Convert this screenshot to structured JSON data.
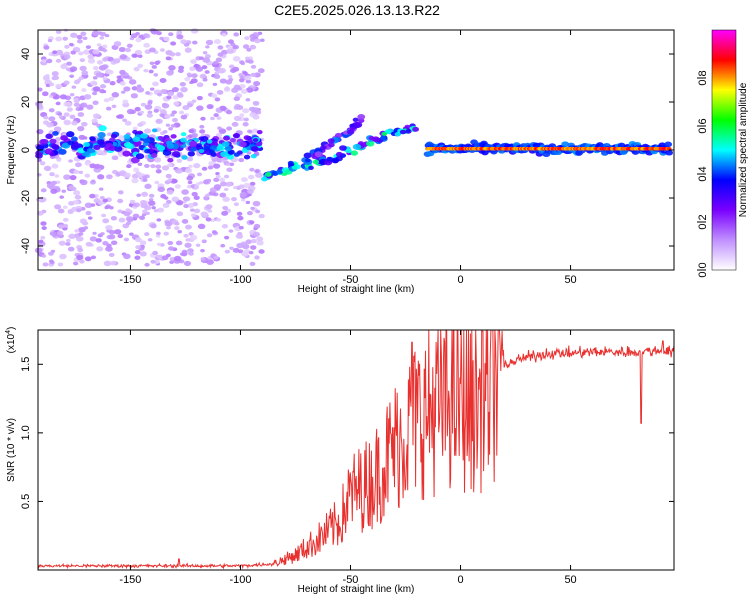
{
  "title": "C2E5.2025.026.13.13.R22",
  "chart_data": [
    {
      "type": "heatmap",
      "title": "",
      "xlabel": "Height of straight line (km)",
      "ylabel": "Frequency (Hz)",
      "xlim": [
        -192,
        97
      ],
      "ylim": [
        -50,
        50
      ],
      "xticks": [
        -150,
        -100,
        -50,
        0,
        50
      ],
      "yticks": [
        -40,
        -20,
        0,
        20,
        40
      ],
      "colorbar": {
        "label": "Normalized spectral amplitude",
        "ticks": [
          0.0,
          0.2,
          0.4,
          0.6,
          0.8
        ],
        "range": [
          0,
          1
        ],
        "colors": [
          "#ffffff",
          "#c090ff",
          "#7a00ff",
          "#0000ff",
          "#00ffff",
          "#00ff00",
          "#ffff00",
          "#ff0000",
          "#ff00ff"
        ]
      },
      "features": [
        {
          "name": "noise",
          "x_range": [
            -192,
            -90
          ],
          "center_hz": 2,
          "spread_hz": 50,
          "amplitude": 0.1
        },
        {
          "name": "band",
          "x_range": [
            -192,
            -90
          ],
          "center_hz": 2,
          "spread_hz": 4,
          "amplitude": 0.3
        },
        {
          "name": "rising ridge",
          "x": [
            -90,
            -80,
            -70,
            -60,
            -50,
            -40,
            -30,
            -20
          ],
          "y": [
            -11,
            -8,
            -6,
            -4,
            0,
            4,
            7,
            10
          ],
          "amplitude": 0.4
        },
        {
          "name": "upper branch",
          "x": [
            -70,
            -60,
            -50,
            -45
          ],
          "y": [
            -4,
            2,
            8,
            14
          ],
          "amplitude": 0.3
        },
        {
          "name": "carrier line",
          "x_range": [
            -15,
            95
          ],
          "center_hz": 0.5,
          "amplitude": 0.9
        }
      ]
    },
    {
      "type": "line",
      "title": "",
      "xlabel": "Height of straight line (km)",
      "ylabel": "SNR (10 * v/v)",
      "scale_label": "(x10",
      "scale_exp": "4",
      "scale": 10000,
      "xlim": [
        -192,
        97
      ],
      "ylim": [
        0,
        17500
      ],
      "xticks": [
        -150,
        -100,
        -50,
        0,
        50
      ],
      "yticks": [
        5000,
        10000,
        15000
      ],
      "ytick_labels": [
        "0.5",
        "1.0",
        "1.5"
      ],
      "color": "#e8312f",
      "envelope": {
        "x": [
          -192,
          -100,
          -85,
          -75,
          -65,
          -55,
          -50,
          -40,
          -30,
          -20,
          -10,
          -5,
          0,
          5,
          10,
          20,
          30,
          40,
          50,
          60,
          70,
          80,
          90,
          97
        ],
        "y": [
          300,
          300,
          450,
          1100,
          2200,
          3500,
          5500,
          6500,
          9000,
          11000,
          12000,
          12500,
          12500,
          12000,
          12500,
          15000,
          15500,
          15800,
          15800,
          15900,
          15900,
          15900,
          16000,
          16000
        ]
      },
      "spikes": [
        {
          "x": -128,
          "y": 800
        },
        {
          "x": -22,
          "y": 16600
        },
        {
          "x": 10,
          "y": 17400
        },
        {
          "x": 82,
          "y": 10700
        },
        {
          "x": 92,
          "y": 16700
        }
      ]
    }
  ]
}
